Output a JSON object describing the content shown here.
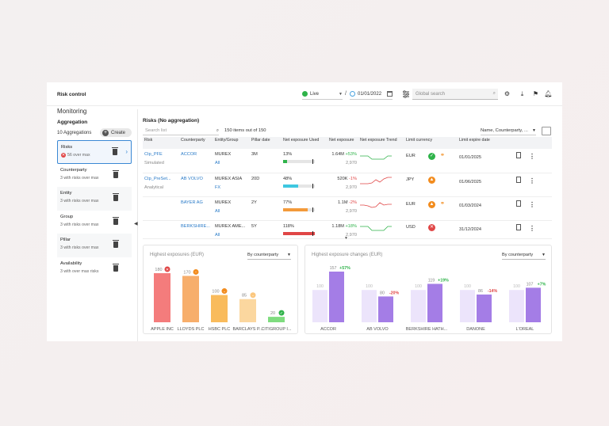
{
  "app": {
    "title": "Risk control",
    "mode": "Live",
    "separator": "/",
    "date": "01/01/2022",
    "search_placeholder": "Global search",
    "icons": [
      "gear-icon",
      "download-icon",
      "flag-icon",
      "bell-icon"
    ]
  },
  "page": {
    "title": "Monitoring"
  },
  "aggregation": {
    "title": "Aggregation",
    "count_label": "10 Aggregations",
    "create_label": "Create",
    "items": [
      {
        "label": "Risks",
        "sub": "56 over max",
        "selected": true,
        "error": true
      },
      {
        "label": "Counterparty",
        "sub": "3 with risks over max"
      },
      {
        "label": "Entity",
        "sub": "3 with risks over max"
      },
      {
        "label": "Group",
        "sub": "3 with risks over max"
      },
      {
        "label": "Pillar",
        "sub": "3 with risks over max"
      },
      {
        "label": "Availability",
        "sub": "3 with over max risks"
      }
    ]
  },
  "risks": {
    "title": "Risks (No aggregation)",
    "search_placeholder": "Search list",
    "items_count": "150 items out of 150",
    "sort_label": "Name, Counterparty, ...",
    "columns": [
      "Risk",
      "Counterparty",
      "Entity/Group",
      "Pillar date",
      "Net exposure Used",
      "Net exposure",
      "Net exposure Trend",
      "Limit currency",
      "Limit expire date"
    ],
    "rows": [
      {
        "risk": "Ctp_PFE",
        "risk_type": "Simulated",
        "counterparty": "ACCOR",
        "entity": "MUREX",
        "group": "All",
        "pillar": "3M",
        "used": "13%",
        "used_pct": 13,
        "used_color": "#2fb34a",
        "exposure": "1.64M",
        "change": "+53%",
        "change_dir": "up",
        "limit": "2,970",
        "trend": [
          6,
          6,
          6,
          2,
          2,
          2,
          2,
          6,
          6
        ],
        "currency": "EUR",
        "status": "ok",
        "links": true,
        "expire": "01/01/2025"
      },
      {
        "risk": "Ctp_PreSet...",
        "risk_type": "Analytical",
        "counterparty": "AB VOLVO",
        "entity": "MUREX ASIA",
        "group": "FX",
        "pillar": "20D",
        "used": "48%",
        "used_pct": 48,
        "used_color": "#3ec7e0",
        "exposure": "520K",
        "change": "-1%",
        "change_dir": "dn",
        "limit": "2,970",
        "trend": [
          2,
          2,
          2,
          3,
          7,
          4,
          8,
          10,
          10
        ],
        "currency": "JPY",
        "status": "warn",
        "links": false,
        "expire": "01/06/2025"
      },
      {
        "risk": "",
        "risk_type": "",
        "counterparty": "BAYER AG",
        "entity": "MUREX",
        "group": "All",
        "pillar": "2Y",
        "used": "77%",
        "used_pct": 77,
        "used_color": "#f39a3a",
        "exposure": "1.1M",
        "change": "-2%",
        "change_dir": "dn",
        "limit": "2,970",
        "trend": [
          5,
          5,
          4,
          2,
          3,
          8,
          5,
          6,
          6
        ],
        "currency": "EUR",
        "status": "warn",
        "links": true,
        "expire": "01/03/2024"
      },
      {
        "risk": "",
        "risk_type": "",
        "counterparty": "BERKSHIRE...",
        "entity": "MUREX AME...",
        "group": "All",
        "pillar": "5Y",
        "used": "118%",
        "used_pct": 100,
        "used_color": "#e04646",
        "exposure": "1.18M",
        "change": "+18%",
        "change_dir": "up",
        "limit": "2,970",
        "trend": [
          8,
          8,
          8,
          3,
          3,
          3,
          3,
          8,
          8
        ],
        "currency": "USD",
        "status": "err",
        "links": false,
        "expire": "31/12/2024"
      }
    ]
  },
  "chart_data": [
    {
      "type": "bar",
      "title": "Highest exposures (EUR)",
      "selector": "By counterparty",
      "categories": [
        "APPLE INC",
        "LLOYDS PLC",
        "HSBC PLC",
        "BARCLAYS P...",
        "CITIGROUP I..."
      ],
      "values": [
        180,
        170,
        100,
        85,
        20
      ],
      "colors": [
        "#f47c7c",
        "#f7ae6b",
        "#f9bb5c",
        "#fbd79f",
        "#7fdc7f"
      ],
      "status": [
        "err",
        "warn",
        "warn",
        "warn-light",
        "ok"
      ],
      "ylim": [
        0,
        180
      ]
    },
    {
      "type": "bar",
      "title": "Highest exposure changes (EUR)",
      "selector": "By counterparty",
      "categories": [
        "ACCOR",
        "AB VOLVO",
        "BERKSHIRE HATH...",
        "DANONE",
        "L'OREAL"
      ],
      "series": [
        {
          "values": [
            100,
            100,
            100,
            100,
            100
          ]
        },
        {
          "values": [
            157,
            80,
            119,
            86,
            107
          ]
        }
      ],
      "changes": [
        "+57%",
        "-20%",
        "+19%",
        "-14%",
        "+7%"
      ],
      "colors": [
        "#ece4fb",
        "#a47de6"
      ],
      "ylim": [
        0,
        157
      ]
    }
  ]
}
